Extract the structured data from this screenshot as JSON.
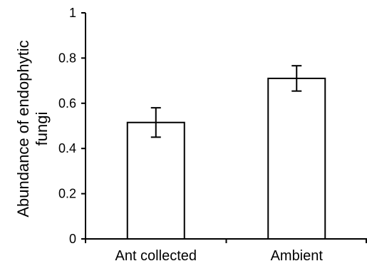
{
  "chart_data": {
    "type": "bar",
    "categories": [
      "Ant collected",
      "Ambient"
    ],
    "values": [
      0.515,
      0.71
    ],
    "error": [
      0.065,
      0.056
    ],
    "title": "",
    "xlabel": "",
    "ylabel_lines": [
      "Abundance of endophytic",
      "fungi"
    ],
    "ylim": [
      0,
      1
    ],
    "yticks": [
      0,
      0.2,
      0.4,
      0.6,
      0.8,
      1
    ],
    "ytick_labels": [
      "0",
      "0.2",
      "0.4",
      "0.6",
      "0.8",
      "1"
    ],
    "grid": false,
    "legend": "none",
    "colors": {
      "bar_fill": "#ffffff",
      "bar_stroke": "#000000",
      "axis": "#000000"
    }
  }
}
